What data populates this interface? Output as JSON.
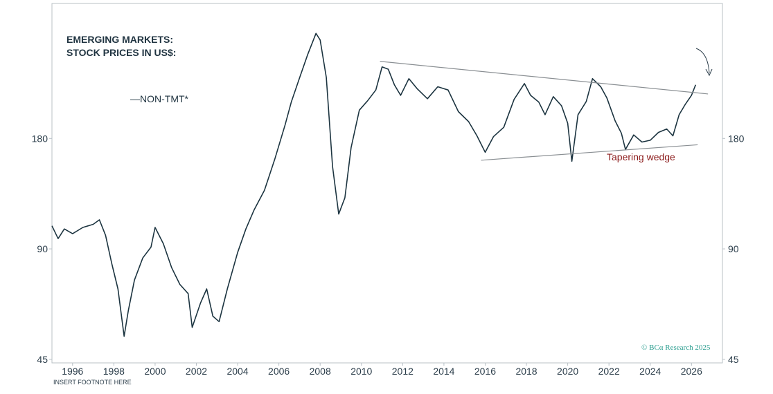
{
  "chart_data": {
    "type": "line",
    "title": [
      "EMERGING MARKETS:",
      "STOCK PRICES IN US$:"
    ],
    "legend": "—NON-TMT*",
    "annotation": "Tapering wedge",
    "credit": "© BCα Research 2025",
    "footnote": "INSERT FOOTNOTE HERE",
    "y_scale": "log",
    "ylim": [
      44,
      420
    ],
    "xlim": [
      1995,
      2027.5
    ],
    "x_ticks": [
      1996,
      1998,
      2000,
      2002,
      2004,
      2006,
      2008,
      2010,
      2012,
      2014,
      2016,
      2018,
      2020,
      2022,
      2024,
      2026
    ],
    "y_ticks": [
      45,
      90,
      180
    ],
    "grid": false,
    "series": [
      {
        "name": "NON-TMT*",
        "color": "#1c3440",
        "x": [
          1995.0,
          1995.3,
          1995.6,
          1996.0,
          1996.5,
          1997.0,
          1997.3,
          1997.6,
          1997.9,
          1998.2,
          1998.5,
          1998.7,
          1999.0,
          1999.4,
          1999.8,
          2000.0,
          2000.4,
          2000.8,
          2001.2,
          2001.6,
          2001.8,
          2002.2,
          2002.5,
          2002.8,
          2003.1,
          2003.5,
          2004.0,
          2004.4,
          2004.8,
          2005.3,
          2005.8,
          2006.3,
          2006.6,
          2007.0,
          2007.4,
          2007.8,
          2008.0,
          2008.3,
          2008.6,
          2008.9,
          2009.2,
          2009.5,
          2009.9,
          2010.3,
          2010.7,
          2011.0,
          2011.3,
          2011.6,
          2011.9,
          2012.3,
          2012.7,
          2013.2,
          2013.7,
          2014.2,
          2014.7,
          2015.2,
          2015.6,
          2016.0,
          2016.4,
          2016.9,
          2017.4,
          2017.9,
          2018.2,
          2018.6,
          2018.9,
          2019.3,
          2019.7,
          2020.0,
          2020.2,
          2020.5,
          2020.9,
          2021.2,
          2021.6,
          2021.9,
          2022.3,
          2022.6,
          2022.8,
          2023.2,
          2023.6,
          2024.0,
          2024.4,
          2024.8,
          2025.1,
          2025.4,
          2025.7,
          2026.0,
          2026.2
        ],
        "values": [
          104,
          96,
          102,
          99,
          103,
          105,
          108,
          98,
          82,
          70,
          52,
          61,
          74,
          85,
          91,
          103,
          93,
          80,
          72,
          68,
          55,
          64,
          70,
          59,
          57,
          70,
          88,
          102,
          115,
          130,
          158,
          196,
          226,
          263,
          305,
          348,
          334,
          264,
          151,
          112,
          124,
          170,
          215,
          228,
          244,
          282,
          278,
          252,
          236,
          262,
          246,
          231,
          249,
          244,
          213,
          200,
          183,
          165,
          182,
          193,
          230,
          254,
          236,
          226,
          209,
          234,
          221,
          198,
          156,
          209,
          227,
          262,
          249,
          232,
          201,
          186,
          168,
          184,
          176,
          178,
          187,
          191,
          183,
          209,
          223,
          236,
          252
        ]
      }
    ],
    "wedge_lines": [
      {
        "x": [
          2010.9,
          2026.8
        ],
        "values": [
          292,
          238
        ]
      },
      {
        "x": [
          2015.8,
          2026.3
        ],
        "values": [
          157,
          173
        ]
      }
    ]
  }
}
